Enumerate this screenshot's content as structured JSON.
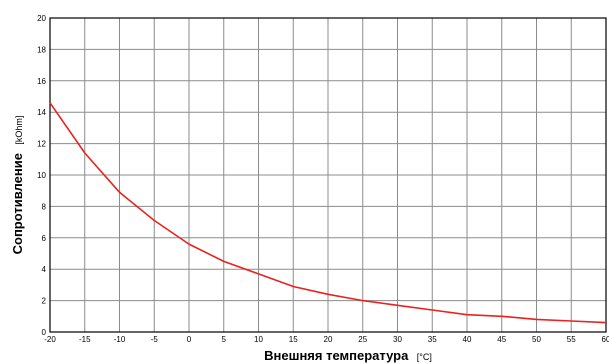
{
  "chart_data": {
    "type": "line",
    "title": "",
    "xlabel": "Внешняя температура",
    "xlabel_unit": "[°C]",
    "ylabel": "Сопротивление",
    "ylabel_unit": "[kOhm]",
    "xlim": [
      -20,
      60
    ],
    "ylim": [
      0,
      20
    ],
    "x_ticks": [
      -20,
      -15,
      -10,
      -5,
      0,
      5,
      10,
      15,
      20,
      25,
      30,
      35,
      40,
      45,
      50,
      55,
      60
    ],
    "y_ticks": [
      0,
      2,
      4,
      6,
      8,
      10,
      12,
      14,
      16,
      18,
      20
    ],
    "grid": true,
    "legend": false,
    "line_color": "#e8231f",
    "grid_color": "#8c8c8c",
    "series": [
      {
        "x": [
          -20,
          -15,
          -10,
          -5,
          0,
          5,
          10,
          15,
          20,
          25,
          30,
          35,
          40,
          45,
          50,
          55,
          60
        ],
        "y": [
          14.6,
          11.4,
          8.9,
          7.1,
          5.6,
          4.5,
          3.7,
          2.9,
          2.4,
          2.0,
          1.7,
          1.4,
          1.1,
          1.0,
          0.8,
          0.7,
          0.6
        ]
      }
    ]
  }
}
